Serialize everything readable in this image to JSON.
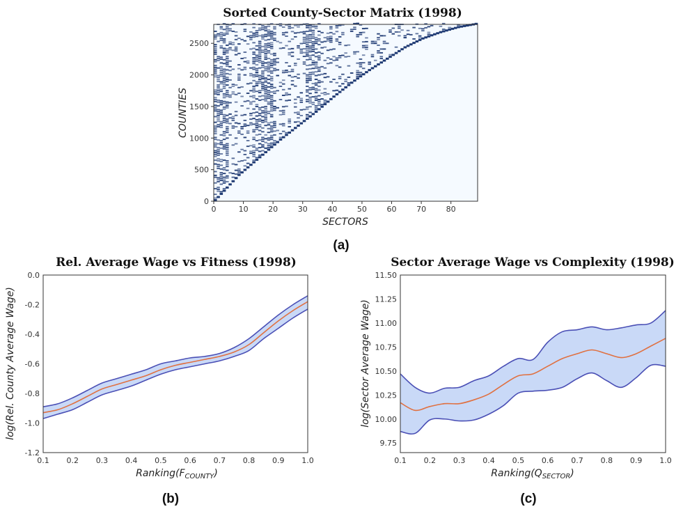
{
  "figure": {
    "panel_a_label": "(a)",
    "panel_b_label": "(b)",
    "panel_c_label": "(c)"
  },
  "chart_data": [
    {
      "type": "heatmap",
      "panel": "(a)",
      "title": "Sorted County-Sector Matrix (1998)",
      "xlabel": "SECTORS",
      "ylabel": "COUNTIES",
      "xlim": [
        0,
        89
      ],
      "ylim": [
        0,
        2800
      ],
      "xticks": [
        0,
        10,
        20,
        30,
        40,
        50,
        60,
        70,
        80
      ],
      "yticks": [
        0,
        500,
        1000,
        1500,
        2000,
        2500
      ],
      "grid": false,
      "colors": {
        "present": "#1f3a73",
        "absent": "#f5faff"
      },
      "description_boundary": [
        [
          0,
          0
        ],
        [
          4,
          200
        ],
        [
          8,
          400
        ],
        [
          15,
          680
        ],
        [
          22,
          960
        ],
        [
          28,
          1180
        ],
        [
          34,
          1400
        ],
        [
          40,
          1640
        ],
        [
          46,
          1860
        ],
        [
          52,
          2060
        ],
        [
          58,
          2240
        ],
        [
          64,
          2420
        ],
        [
          70,
          2560
        ],
        [
          76,
          2660
        ],
        [
          82,
          2740
        ],
        [
          89,
          2800
        ]
      ],
      "dense_columns": [
        0,
        1,
        2,
        3,
        4,
        13,
        14,
        15,
        16,
        17,
        18,
        19,
        20,
        31,
        32,
        33,
        34,
        35
      ]
    },
    {
      "type": "line",
      "panel": "(b)",
      "title": "Rel. Average Wage vs Fitness (1998)",
      "xlabel": "Ranking(F",
      "xlabel_sub": "COUNTY",
      "xlabel_close": ")",
      "ylabel": "log(Rel. County Average Wage)",
      "xlim": [
        0.1,
        1.0
      ],
      "ylim": [
        -1.2,
        0.0
      ],
      "xticks": [
        "0.1",
        "0.2",
        "0.3",
        "0.4",
        "0.5",
        "0.6",
        "0.7",
        "0.8",
        "0.9",
        "1.0"
      ],
      "yticks": [
        "-1.2",
        "-1.0",
        "-0.8",
        "-0.6",
        "-0.4",
        "-0.2",
        "0.0"
      ],
      "grid": false,
      "colors": {
        "mean": "#e07040",
        "band_edge": "#4a4fb5",
        "band_fill": "#c9d9f7"
      },
      "x": [
        0.1,
        0.15,
        0.2,
        0.25,
        0.3,
        0.35,
        0.4,
        0.45,
        0.5,
        0.55,
        0.6,
        0.65,
        0.7,
        0.75,
        0.8,
        0.85,
        0.9,
        0.95,
        1.0
      ],
      "series": [
        {
          "values": [
            -0.93,
            -0.91,
            -0.87,
            -0.82,
            -0.77,
            -0.74,
            -0.71,
            -0.68,
            -0.64,
            -0.61,
            -0.59,
            -0.57,
            -0.55,
            -0.52,
            -0.47,
            -0.39,
            -0.31,
            -0.24,
            -0.18
          ]
        },
        {
          "values": [
            -0.89,
            -0.87,
            -0.83,
            -0.78,
            -0.73,
            -0.7,
            -0.67,
            -0.64,
            -0.6,
            -0.58,
            -0.56,
            -0.55,
            -0.53,
            -0.49,
            -0.43,
            -0.35,
            -0.27,
            -0.2,
            -0.14
          ]
        },
        {
          "values": [
            -0.97,
            -0.94,
            -0.91,
            -0.86,
            -0.81,
            -0.78,
            -0.75,
            -0.71,
            -0.67,
            -0.64,
            -0.62,
            -0.6,
            -0.58,
            -0.55,
            -0.51,
            -0.43,
            -0.36,
            -0.29,
            -0.23
          ]
        }
      ]
    },
    {
      "type": "line",
      "panel": "(c)",
      "title": "Sector Average Wage vs Complexity (1998)",
      "xlabel": "Ranking(Q",
      "xlabel_sub": "SECTOR",
      "xlabel_close": ")",
      "ylabel": "log(Sector Average Wage)",
      "xlim": [
        0.1,
        1.0
      ],
      "ylim": [
        9.65,
        11.5
      ],
      "xticks": [
        "0.1",
        "0.2",
        "0.3",
        "0.4",
        "0.5",
        "0.6",
        "0.7",
        "0.8",
        "0.9",
        "1.0"
      ],
      "yticks": [
        "9.75",
        "10.00",
        "10.25",
        "10.50",
        "10.75",
        "11.00",
        "11.25",
        "11.50"
      ],
      "grid": false,
      "colors": {
        "mean": "#e07040",
        "band_edge": "#4a4fb5",
        "band_fill": "#c9d9f7"
      },
      "x": [
        0.1,
        0.15,
        0.2,
        0.25,
        0.3,
        0.35,
        0.4,
        0.45,
        0.5,
        0.55,
        0.6,
        0.65,
        0.7,
        0.75,
        0.8,
        0.85,
        0.9,
        0.95,
        1.0
      ],
      "series": [
        {
          "values": [
            10.17,
            10.09,
            10.13,
            10.16,
            10.16,
            10.2,
            10.26,
            10.36,
            10.45,
            10.47,
            10.55,
            10.63,
            10.68,
            10.72,
            10.68,
            10.64,
            10.68,
            10.76,
            10.84
          ]
        },
        {
          "values": [
            10.47,
            10.33,
            10.27,
            10.32,
            10.33,
            10.4,
            10.45,
            10.55,
            10.63,
            10.62,
            10.8,
            10.91,
            10.93,
            10.96,
            10.93,
            10.95,
            10.98,
            11.0,
            11.13
          ]
        },
        {
          "values": [
            9.87,
            9.85,
            9.99,
            10.0,
            9.98,
            9.99,
            10.05,
            10.14,
            10.27,
            10.29,
            10.3,
            10.33,
            10.42,
            10.48,
            10.4,
            10.33,
            10.43,
            10.56,
            10.55
          ]
        }
      ]
    }
  ]
}
